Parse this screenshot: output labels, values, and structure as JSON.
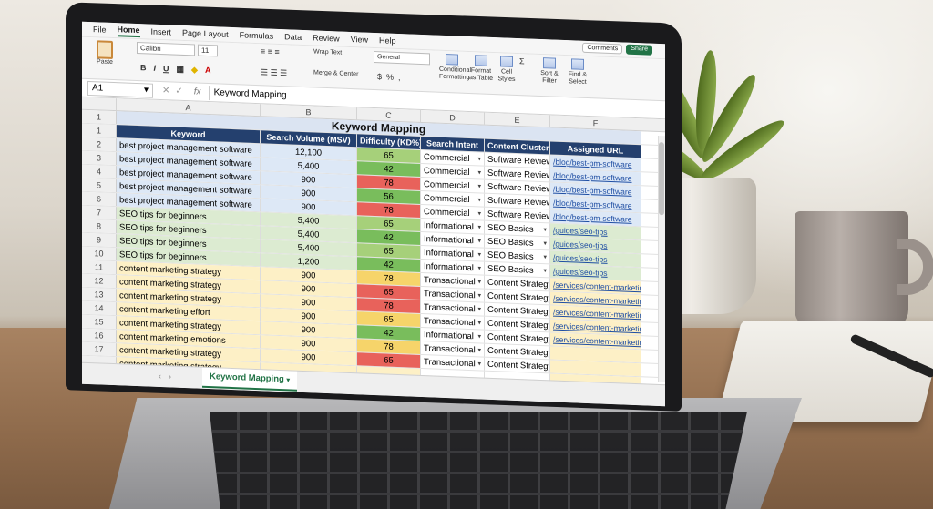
{
  "menu": [
    "File",
    "Home",
    "Insert",
    "Page Layout",
    "Formulas",
    "Data",
    "Review",
    "View",
    "Help"
  ],
  "active_menu": "Home",
  "buttons": {
    "comments": "Comments",
    "share": "Share"
  },
  "ribbon": {
    "paste": "Paste",
    "font": "Calibri",
    "size": "11",
    "wrap": "Wrap Text",
    "merge": "Merge & Center",
    "numfmt": "General",
    "conditional": "Conditional Formatting",
    "format_table": "Format as Table",
    "cell_styles": "Cell Styles",
    "sort_filter": "Sort & Filter",
    "find_select": "Find & Select",
    "bold": "B",
    "italic": "I",
    "underline": "U",
    "currency": "$",
    "percent": "%",
    "comma": ",",
    "sum": "Σ"
  },
  "formula_bar": {
    "cell": "A1",
    "fx": "fx",
    "value": "Keyword Mapping"
  },
  "columns": [
    "A",
    "B",
    "C",
    "D",
    "E",
    "F"
  ],
  "title": "Keyword Mapping",
  "headers": [
    "Keyword",
    "Search Volume (MSV)",
    "Difficulty (KD%)",
    "Search Intent",
    "Content Cluster",
    "Assigned URL"
  ],
  "row_numbers": [
    "1",
    "1",
    "2",
    "3",
    "4",
    "5",
    "6",
    "7",
    "8",
    "9",
    "10",
    "11",
    "12",
    "13",
    "14",
    "15",
    "16",
    "17"
  ],
  "rows": [
    {
      "keyword": "best project management software",
      "volume": "12,100",
      "kd": "65",
      "kd_color": "lgreen",
      "intent": "Commercial",
      "cluster": "Software Reviews",
      "url": "/blog/best-pm-software",
      "group": "blue"
    },
    {
      "keyword": "best project management software",
      "volume": "5,400",
      "kd": "42",
      "kd_color": "green",
      "intent": "Commercial",
      "cluster": "Software Reviews",
      "url": "/blog/best-pm-software",
      "group": "blue"
    },
    {
      "keyword": "best project management software",
      "volume": "900",
      "kd": "78",
      "kd_color": "red",
      "intent": "Commercial",
      "cluster": "Software Reviews",
      "url": "/blog/best-pm-software",
      "group": "blue"
    },
    {
      "keyword": "best project management software",
      "volume": "900",
      "kd": "56",
      "kd_color": "green",
      "intent": "Commercial",
      "cluster": "Software Reviews",
      "url": "/blog/best-pm-software",
      "group": "blue"
    },
    {
      "keyword": "best project management software",
      "volume": "900",
      "kd": "78",
      "kd_color": "red",
      "intent": "Commercial",
      "cluster": "Software Reviews",
      "url": "/blog/best-pm-software",
      "group": "blue"
    },
    {
      "keyword": "SEO tips for beginners",
      "volume": "5,400",
      "kd": "65",
      "kd_color": "lgreen",
      "intent": "Informational",
      "cluster": "SEO Basics",
      "url": "/guides/seo-tips",
      "group": "green"
    },
    {
      "keyword": "SEO tips for beginners",
      "volume": "5,400",
      "kd": "42",
      "kd_color": "green",
      "intent": "Informational",
      "cluster": "SEO Basics",
      "url": "/guides/seo-tips",
      "group": "green"
    },
    {
      "keyword": "SEO tips for beginners",
      "volume": "5,400",
      "kd": "65",
      "kd_color": "lgreen",
      "intent": "Informational",
      "cluster": "SEO Basics",
      "url": "/guides/seo-tips",
      "group": "green"
    },
    {
      "keyword": "SEO tips for beginners",
      "volume": "1,200",
      "kd": "42",
      "kd_color": "green",
      "intent": "Informational",
      "cluster": "SEO Basics",
      "url": "/guides/seo-tips",
      "group": "green"
    },
    {
      "keyword": "content marketing strategy",
      "volume": "900",
      "kd": "78",
      "kd_color": "yellow",
      "intent": "Transactional",
      "cluster": "Content Strategy",
      "url": "/services/content-marketing",
      "group": "yellow"
    },
    {
      "keyword": "content marketing strategy",
      "volume": "900",
      "kd": "65",
      "kd_color": "red",
      "intent": "Transactional",
      "cluster": "Content Strategy",
      "url": "/services/content-marketing",
      "group": "yellow"
    },
    {
      "keyword": "content marketing strategy",
      "volume": "900",
      "kd": "78",
      "kd_color": "red",
      "intent": "Transactional",
      "cluster": "Content Strategy",
      "url": "/services/content-marketing",
      "group": "yellow"
    },
    {
      "keyword": "content marketing effort",
      "volume": "900",
      "kd": "65",
      "kd_color": "yellow",
      "intent": "Transactional",
      "cluster": "Content Strategy",
      "url": "/services/content-marketing",
      "group": "yellow"
    },
    {
      "keyword": "content marketing strategy",
      "volume": "900",
      "kd": "42",
      "kd_color": "green",
      "intent": "Informational",
      "cluster": "Content Strategy",
      "url": "/services/content-marketing",
      "group": "yellow"
    },
    {
      "keyword": "content marketing emotions",
      "volume": "900",
      "kd": "78",
      "kd_color": "yellow",
      "intent": "Transactional",
      "cluster": "Content Strategy",
      "url": "",
      "group": "yellow"
    },
    {
      "keyword": "content marketing strategy",
      "volume": "900",
      "kd": "65",
      "kd_color": "red",
      "intent": "Transactional",
      "cluster": "Content Strategy",
      "url": "",
      "group": "yellow"
    },
    {
      "keyword": "content marketing strategy",
      "volume": "",
      "kd": "",
      "kd_color": "none",
      "intent": "",
      "cluster": "",
      "url": "",
      "group": "yellow"
    }
  ],
  "sheet_tab": "Keyword Mapping",
  "colors": {
    "excel_green": "#217346",
    "header_navy": "#24406e"
  }
}
